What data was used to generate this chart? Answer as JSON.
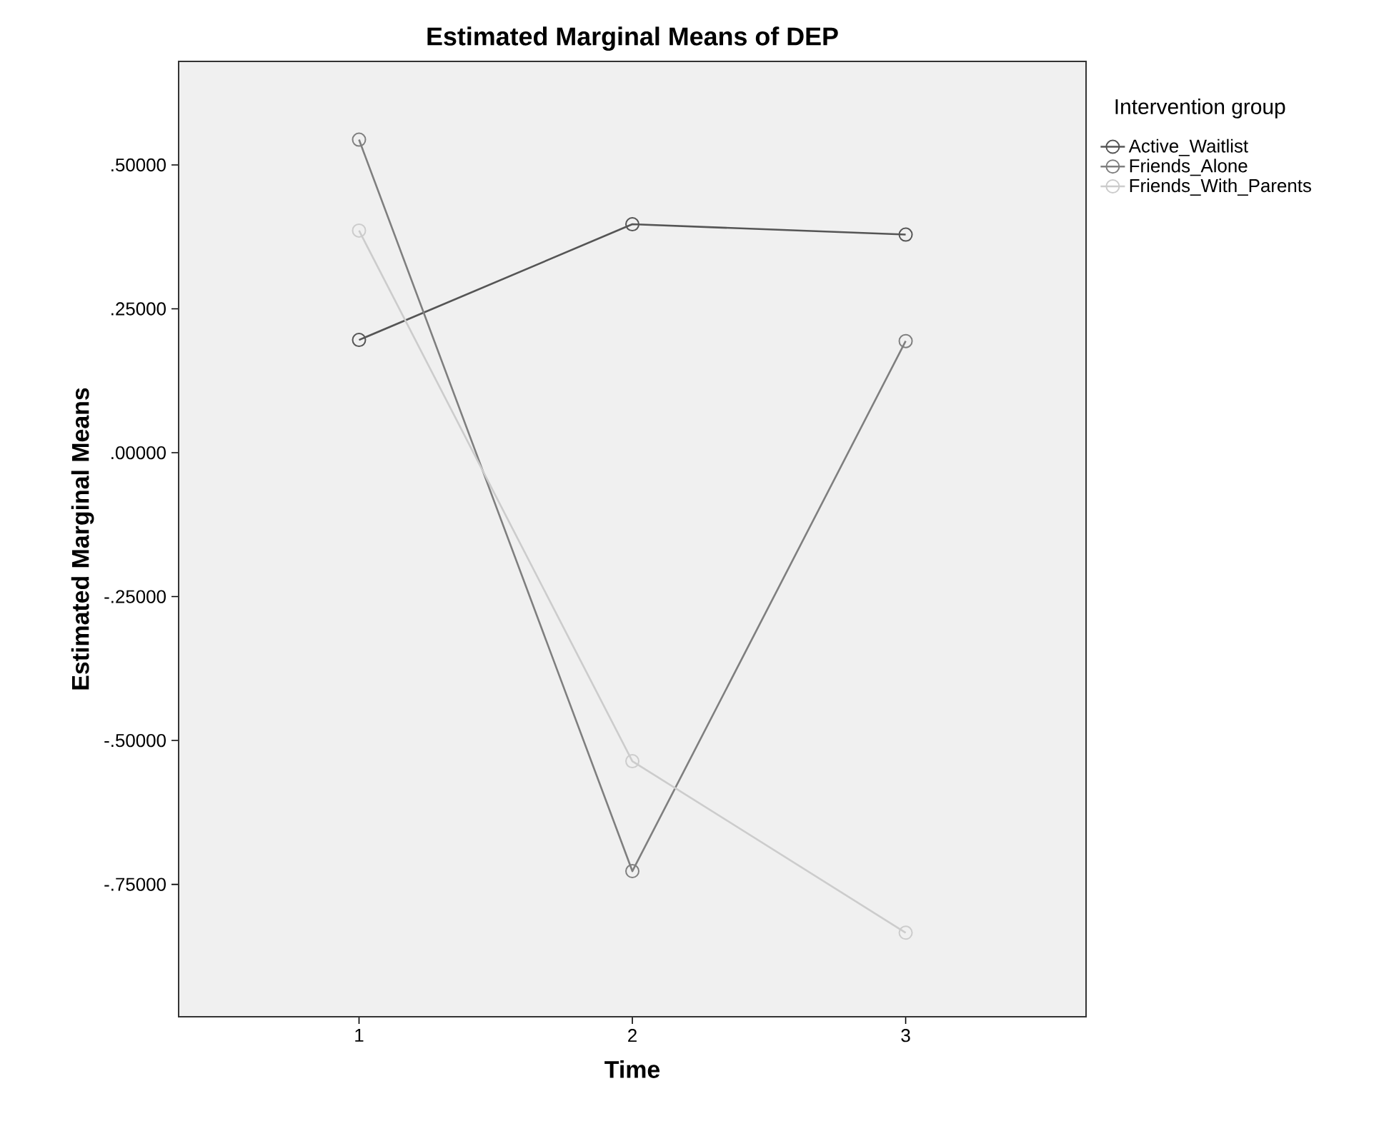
{
  "chart_data": {
    "type": "line",
    "title": "Estimated Marginal Means of DEP",
    "xlabel": "Time",
    "ylabel": "Estimated Marginal Means",
    "legend_title": "Intervention group",
    "x": [
      1,
      2,
      3
    ],
    "xlim": [
      0.34,
      3.66
    ],
    "xticks": [
      1,
      2,
      3
    ],
    "ylim": [
      -0.98,
      0.68
    ],
    "yticks": [
      {
        "value": -0.75,
        "label": "-.75000"
      },
      {
        "value": -0.5,
        "label": "-.50000"
      },
      {
        "value": -0.25,
        "label": "-.25000"
      },
      {
        "value": 0,
        "label": ".00000"
      },
      {
        "value": 0.25,
        "label": ".25000"
      },
      {
        "value": 0.5,
        "label": ".50000"
      }
    ],
    "series": [
      {
        "name": "Active_Waitlist",
        "color": "#555555",
        "values": [
          0.196,
          0.397,
          0.379
        ]
      },
      {
        "name": "Friends_Alone",
        "color": "#7f7f7f",
        "values": [
          0.544,
          -0.727,
          0.194
        ]
      },
      {
        "name": "Friends_With_Parents",
        "color": "#cccccc",
        "values": [
          0.386,
          -0.536,
          -0.834
        ]
      }
    ],
    "marker": "circle",
    "line_style": "solid",
    "legend": "right",
    "grid": false
  }
}
